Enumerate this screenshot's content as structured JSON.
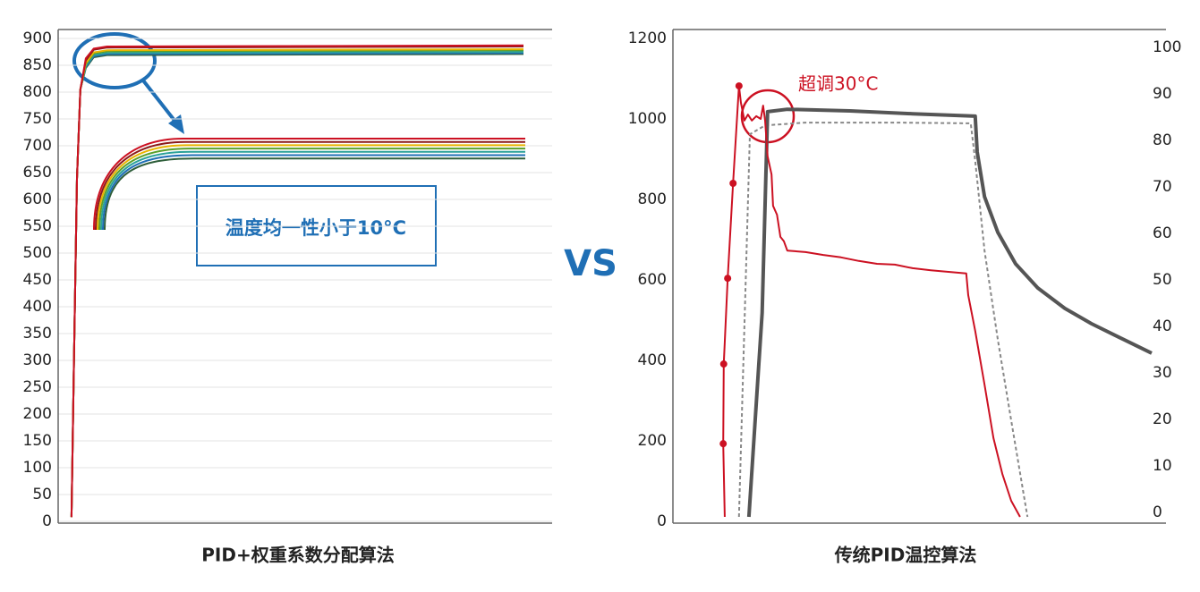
{
  "vs_label": "VS",
  "chart_data": [
    {
      "type": "line",
      "xlabel": "PID+权重系数分配算法",
      "annotation": "温度均一性小于10°C",
      "xlim": [
        0,
        100
      ],
      "ylim": [
        0,
        900
      ],
      "yticks": [
        0,
        50,
        100,
        150,
        200,
        250,
        300,
        350,
        400,
        450,
        500,
        550,
        600,
        650,
        700,
        750,
        800,
        850,
        900
      ],
      "grid": true,
      "series": [
        {
          "color": "#2e5e3a",
          "x": [
            2.7,
            3.2,
            3.8,
            4.5,
            5.6,
            7.2,
            9.9,
            94.2
          ],
          "values": [
            8,
            305,
            638,
            805,
            845,
            865,
            869,
            871
          ]
        },
        {
          "color": "#1f6fb5",
          "x": [
            2.7,
            3.2,
            3.8,
            4.5,
            5.6,
            7.2,
            9.9,
            94.2
          ],
          "values": [
            8,
            305,
            638,
            805,
            847,
            867,
            871,
            873
          ]
        },
        {
          "color": "#2aa198",
          "x": [
            2.7,
            3.2,
            3.8,
            4.5,
            5.6,
            7.2,
            9.9,
            94.2
          ],
          "values": [
            8,
            305,
            638,
            805,
            849,
            869,
            873,
            875
          ]
        },
        {
          "color": "#5aa02c",
          "x": [
            2.7,
            3.2,
            3.8,
            4.5,
            5.6,
            7.2,
            9.9,
            94.2
          ],
          "values": [
            8,
            305,
            638,
            805,
            852,
            872,
            876,
            878
          ]
        },
        {
          "color": "#e8b400",
          "x": [
            2.7,
            3.2,
            3.8,
            4.5,
            5.6,
            7.2,
            9.9,
            94.2
          ],
          "values": [
            8,
            305,
            638,
            805,
            854,
            874,
            878,
            880
          ]
        },
        {
          "color": "#8b1a1a",
          "x": [
            2.7,
            3.2,
            3.8,
            4.5,
            5.6,
            7.2,
            9.9,
            94.2
          ],
          "values": [
            8,
            305,
            638,
            805,
            859,
            879,
            883,
            885
          ]
        },
        {
          "color": "#cc1122",
          "x": [
            2.7,
            3.2,
            3.8,
            4.5,
            5.6,
            7.2,
            9.9,
            94.2
          ],
          "values": [
            8,
            305,
            638,
            805,
            863,
            881,
            885,
            887
          ]
        }
      ]
    },
    {
      "type": "line",
      "xlabel": "传统PID温控算法",
      "annotation": "超调30°C",
      "xlim": [
        0,
        100
      ],
      "ylim": [
        0,
        1200
      ],
      "yticks": [
        0,
        200,
        400,
        600,
        800,
        1000,
        1200
      ],
      "y2lim": [
        0,
        100
      ],
      "y2ticks": [
        0,
        10,
        20,
        30,
        40,
        50,
        60,
        70,
        80,
        90,
        100
      ],
      "series": [
        {
          "color": "#888888",
          "dash": true,
          "x": [
            13.4,
            15.6,
            18.7,
            26.9,
            45.0,
            60.4,
            61.3,
            63.2,
            65.9,
            68.6,
            71.9
          ],
          "values": [
            11,
            962,
            984,
            991,
            991,
            989,
            896,
            673,
            451,
            251,
            11
          ]
        },
        {
          "color": "#555555",
          "width": 4,
          "x": [
            15.4,
            18.1,
            19.2,
            23.2,
            35.9,
            48.6,
            61.3,
            61.7,
            63.2,
            65.9,
            69.5,
            74.0,
            79.5,
            84.9,
            90.4,
            97.1
          ],
          "values": [
            11,
            518,
            1018,
            1024,
            1020,
            1013,
            1007,
            918,
            807,
            718,
            640,
            580,
            529,
            491,
            458,
            418
          ]
        },
        {
          "color": "#cc1122",
          "x": [
            10.5,
            10.2,
            10.3,
            11.1,
            12.2,
            13.4,
            13.8,
            14.5,
            15.2,
            16.0,
            16.9,
            17.8,
            18.3,
            18.7,
            19.2,
            20.0,
            20.3,
            21.1,
            21.8,
            22.5,
            23.2,
            26.9,
            30.5,
            34.1,
            37.7,
            41.4,
            45.0,
            48.6,
            52.3,
            55.9,
            59.5,
            59.9,
            61.3,
            63.2,
            65.0,
            66.8,
            68.6,
            70.4
          ],
          "values": [
            11,
            193,
            391,
            604,
            840,
            1082,
            1040,
            996,
            1011,
            996,
            1007,
            1000,
            1033,
            996,
            907,
            862,
            784,
            762,
            707,
            696,
            673,
            669,
            662,
            656,
            647,
            640,
            638,
            629,
            624,
            620,
            616,
            562,
            473,
            340,
            207,
            118,
            51,
            11
          ]
        },
        {
          "color": "#cc1122",
          "marker": true,
          "x": [
            10.2,
            10.3,
            11.1,
            12.2,
            13.4
          ],
          "values": [
            193,
            391,
            604,
            840,
            1082
          ]
        }
      ]
    }
  ]
}
